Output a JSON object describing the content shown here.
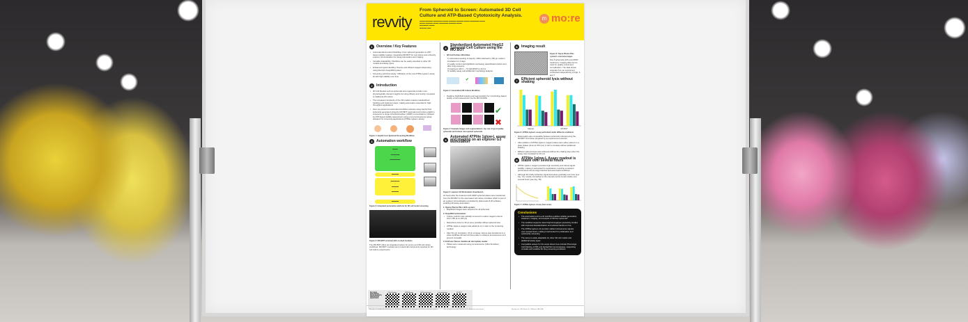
{
  "poster": {
    "brand_left": "revvity",
    "brand_right": "mo:re",
    "title": "From Spheroid to Screen: Automated 3D Cell Culture and ATP-Based Cytotoxicity Analysis.",
    "sections": {
      "s1": {
        "num": "1",
        "title": "Overview / Key Features",
        "bullets": [
          "Automated End-to-End Workflow: From spheroid generation to ATP-based viability readout, integrating MO:BOT for cell culture and a Revvity explorer G3 workstation for assay automation and imaging",
          "Versatile Adaptability: Workflow can be easily extended to other 3D models and assay types",
          "Enhanced Liquid Handling: Precise and efficient reagent dispensing using Revvity's KeepWell system",
          "Screening optimized assay: Utilization of the new ATPlite 1glow-L assay kit with high stability over time"
        ]
      },
      "s2": {
        "num": "2",
        "title": "Introduction",
        "bullets": [
          "3D Cell Models such as spheroids and organoids provide more physiologically relevant insights into drug efficacy and toxicity compared to traditional 2D culture",
          "The increased complexity of the 3D models requires standardized handling and treatment steps, making automation essential for high-throughput applications",
          "Here we present an automated workflow example using HepG2 liver spheroids generated using the MO:BOT automated cell culture platform exposed to a range of Acetaminophen (APAP) concentrations, followed by ATP-based viability assessment using a new luminescence assay designed for screening applications (ATPlite 1glow-L assay)"
        ],
        "fig1": "Figure 1: HepG2 Liver Spheroid Screening Workflow"
      },
      "s3": {
        "num": "3",
        "title": "Automation workflow",
        "fig2": "Figure 2: Integrated automation platform for 3D cell model screening",
        "fig3": "Figure 3: MO:BOT enriched with on-deck modules",
        "fig3_text": "The MO:BOT offers an integrated system for end-to-end 3D cell culture workflows. MO:BOT modules and on-deck lab instruments required for 3D cell culture experiments."
      },
      "s4": {
        "num": "4",
        "title": "Standardized Automated HepG2 Spheroid Cell Culture using the MO:BOT",
        "lead": "3D Cell Culture Workflow",
        "steps": [
          "1) automated seeding of HepG2, 2000 cells/well in 150 µL medium; incubation for 4 days",
          "2) quality control via brightfield morphology quantification before and after drug exposure",
          "3) treatment with 0 – 70 mM APAP for 24 hrs",
          "4) viability assay and additional morphology analysis"
        ],
        "fig3": "Figure 3: Generalized 3D Culture Workflow",
        "bullet": "Realtime brightfield imaging and segmentation for morphology-based quality control assessment via the MO:SCOPE",
        "fig4": "Figure 4: Example images and segmentations; top row of good quality spheroids and bottom row rejected spheroids"
      },
      "s5": {
        "num": "5",
        "title": "Automated ATPlite 1glow-L assay and imaging on an explorer G3 workstation",
        "fig": "Figure 5: explorer G3 Workstation Smartbench",
        "text": "24 hours after the treatment with APAP spheroid plates were transferred from the MO:BOT to the automated cell culture incubator which is part of an explorer G3 workstation controlled by plate:works 8.30 software, enabling full assay automation",
        "items": [
          "1. Opera Phenix Plus HCS system:",
          "Brightfield images were acquired for all spheroids",
          "2. KeepWell workstation:",
          "Culture medium was partially removed to reduce reagent volume (from 150 µL to 100 µL)",
          "Reductions down to 30 µL were possible without spheroid loss",
          "ATPlite 1glow-L reagent was added at a 1:1 ratio to the remaining medium",
          "After 30 min incubation, 30 µL of assay mixture was transferred to a white OptiPlate 96-well 1/2 Area plate to enhance luminescence and prevent crosstalk",
          "3. EnVision Nexus multimode microplate reader:",
          "Plates were measured using Luminescence (Ultra Sensitive) technology"
        ]
      },
      "s6": {
        "num": "6",
        "title": "Imaging result",
        "fig": "Figure 6: Opera Phenix Plus system's overview images",
        "text": "Day 5 spheroids (24h post APAP treatment). Imaging data can be used for quality control and normalization. The data shown originate from an experiment conducted independently of Figs. 6 and 7."
      },
      "s7": {
        "num": "7",
        "title": "Efficient spheroid lysis without shaking",
        "fig": "Figure 6: ATPlite 1glow-L assay performed under different conditions",
        "bullets": [
          "Data quality was comparable between spheroids cultured using the MO:BOT and those prepared by an experienced scientist",
          "After addition of ATPlite 1glow-L reagent plates were either placed on a plate shaker (2min at 700 rpm) or left to incubate without additional shaking",
          "Efficient spheroid lysis was achieved without the shaking step when the assay was incubated for 30 min"
        ],
        "axis_groups": [
          "Manual",
          "MO:BOT"
        ]
      },
      "s8": {
        "num": "8",
        "title": "ATPlite 1glow-L Assay readout is stable over several hours",
        "bullets": [
          "ATPlite 1glow-L reagent provides high sensitivity and robust signal stability, making it well-suited for applications requiring consistent performance across large batches and automated workflows",
          "Although the firefly luciferase signal decreases gradually over time (see Fig. 7A), results normalized to the internal control remain stable over several hours (see Fig. 7B)"
        ],
        "fig": "Figure 7: ATPlite 1glow-L Assay time series"
      },
      "conclusions": {
        "title": "Conclusions",
        "bullets": [
          "The automated end-to-end workflow enables reliable generation, treatment, imaging, and analysis of 3D liver spheroids",
          "The workflow supports robust high-throughput cytotoxicity studies with improved standardization and reduced hands-on time",
          "The ATPlite 1glow-L kit provides stable luminescence signals over several hours, making it well suited for proliferation and cytotoxicity screening",
          "The setup is easily adaptable for other 3D cell models and additional assay types",
          "Compatible assays for the setup shown here include Phenologic Cell Painting, HTRF and AlphaLISA immunoassays, supporting versatile and scalable 3D drug screening workflows"
        ]
      }
    },
    "qr": {
      "note": "For more information about products used in this experiment",
      "labels": [
        "Plate Readers",
        "HTRF Assays",
        "HCS instruments",
        "Lab automation",
        "MO:BOT"
      ]
    },
    "footer_left": "Revvity is a trademark of Revvity, Inc. All other trademarks are the property of their respective owners.",
    "footer_mid": "For research use only. Not for use in diagnostic procedures.",
    "footer_right": "Revvity, Inc. 940 Winter St., Waltham, MA USA"
  },
  "chart_data": {
    "type": "bar",
    "title": "",
    "categories": [
      "1",
      "2",
      "3",
      "4"
    ],
    "series": [
      {
        "values": [
          1.0,
          0.85,
          0.95,
          0.85
        ]
      },
      {
        "values": [
          0.85,
          0.83,
          1.0,
          0.85
        ]
      },
      {
        "values": [
          0.45,
          0.42,
          0.45,
          0.6
        ]
      },
      {
        "values": [
          0.45,
          0.38,
          0.42,
          0.4
        ]
      }
    ],
    "colors": [
      "#f5ee2a",
      "#34e6ee",
      "#1a6f6a",
      "#7a1a6a"
    ],
    "group_labels": [
      "Manual",
      "MO:BOT"
    ]
  },
  "colors": {
    "header": "#ffe500",
    "accent_orange": "#ec6a3c",
    "conclusion_bg": "#111111"
  }
}
